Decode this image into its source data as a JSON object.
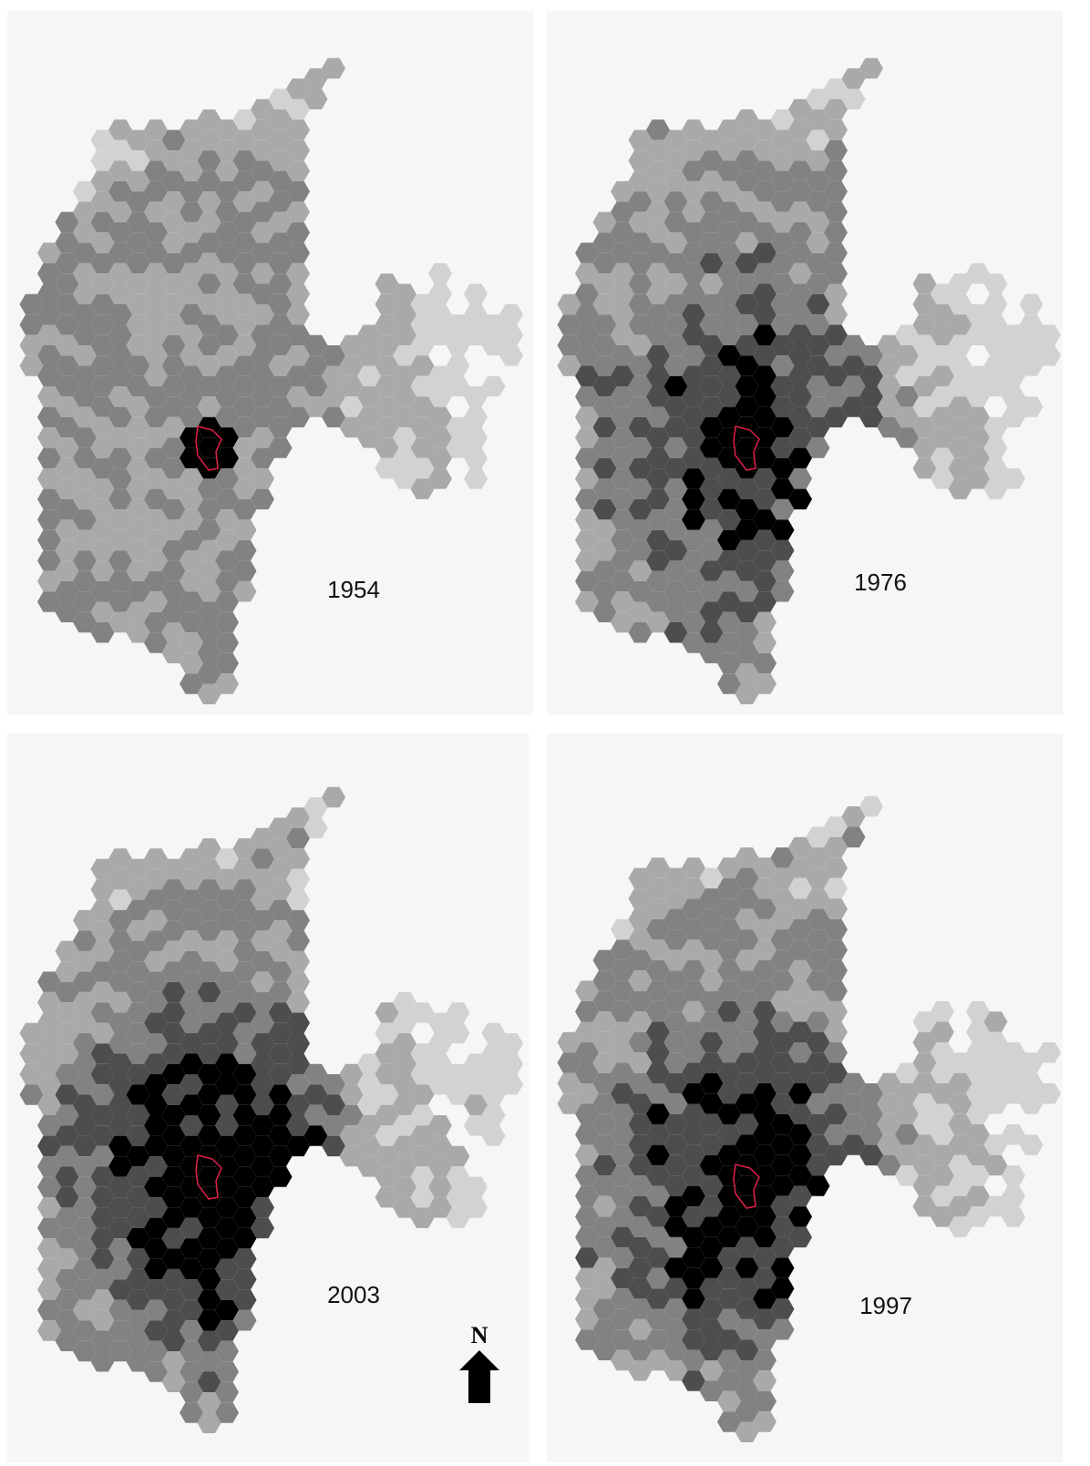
{
  "panels": [
    {
      "year": "1954"
    },
    {
      "year": "1976"
    },
    {
      "year": "2003"
    },
    {
      "year": "1997"
    }
  ],
  "north_arrow": {
    "label": "N"
  }
}
